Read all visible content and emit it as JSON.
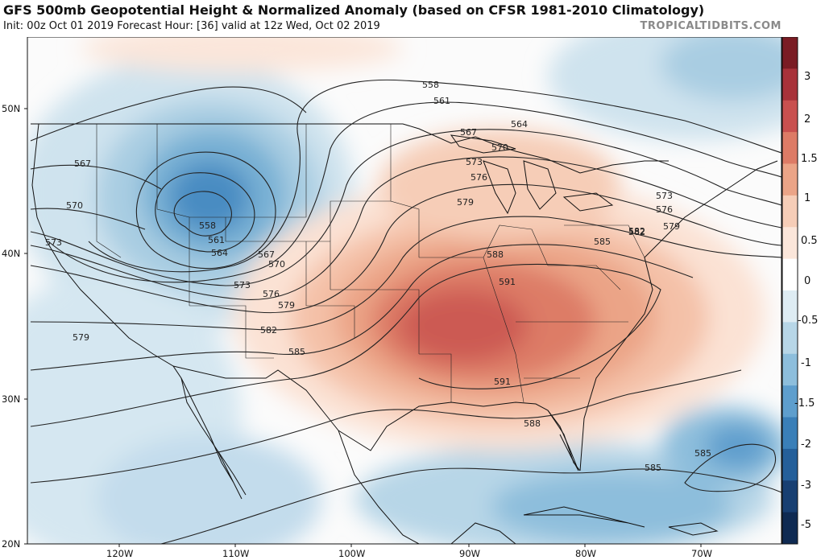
{
  "header": {
    "title": "GFS 500mb Geopotential Height & Normalized Anomaly (based on CFSR 1981-2010 Climatology)",
    "subtitle": "Init: 00z Oct 01 2019   Forecast Hour: [36]   valid at 12z Wed, Oct 02 2019",
    "brand": "TROPICALTIDBITS.COM"
  },
  "map": {
    "lat_labels": [
      "50N",
      "40N",
      "30N",
      "20N"
    ],
    "lon_labels": [
      "120W",
      "110W",
      "100W",
      "90W",
      "80W",
      "70W"
    ],
    "contour_labels": [
      "558",
      "561",
      "564",
      "567",
      "570",
      "573",
      "576",
      "579",
      "582",
      "585",
      "588",
      "591",
      "558",
      "561",
      "564",
      "567",
      "570",
      "573",
      "576",
      "579",
      "582",
      "585",
      "588",
      "591",
      "567",
      "570",
      "573",
      "579",
      "573",
      "576",
      "579",
      "582",
      "585",
      "585"
    ]
  },
  "colorbar": {
    "labels": [
      "3",
      "2",
      "1.5",
      "1",
      "0.5",
      "0",
      "-0.5",
      "-1",
      "-1.5",
      "-2",
      "-3",
      "-5"
    ],
    "colors": [
      "#7a1c24",
      "#a8323a",
      "#c9504f",
      "#dd7b66",
      "#eba487",
      "#f6cdb7",
      "#fbe6da",
      "#ffffff",
      "#deecf3",
      "#b7d6e7",
      "#8dbedc",
      "#5e9ecd",
      "#3a7fb8",
      "#245f9a",
      "#183f72",
      "#0f2a52"
    ]
  },
  "palette": {
    "pos_strong": "#c9504f",
    "neg_strong": "#3a7fb8",
    "contour": "#222222"
  }
}
